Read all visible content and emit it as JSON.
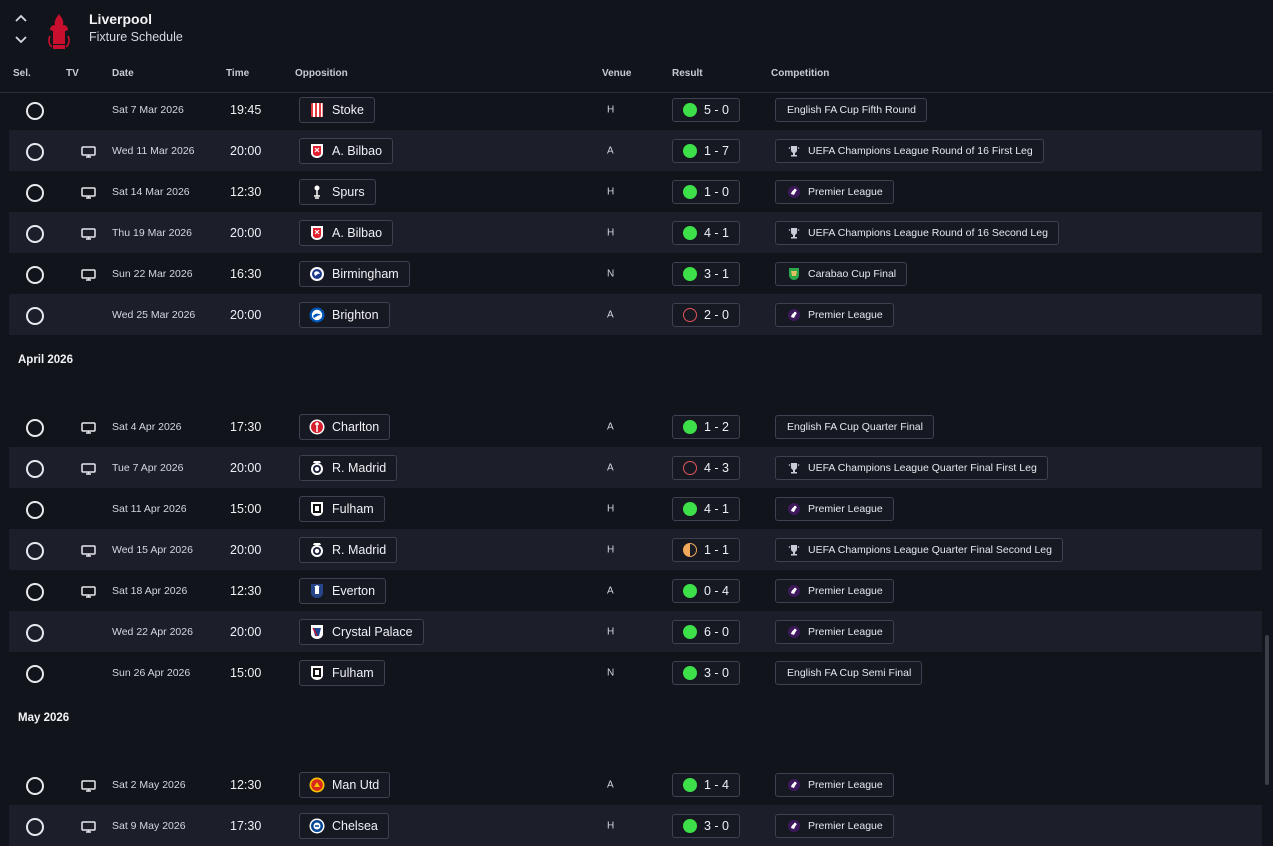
{
  "header": {
    "club_name": "Liverpool",
    "page_title": "Fixture Schedule"
  },
  "columns": {
    "sel": "Sel.",
    "tv": "TV",
    "date": "Date",
    "time": "Time",
    "opposition": "Opposition",
    "venue": "Venue",
    "result": "Result",
    "competition": "Competition"
  },
  "colors": {
    "win": "#3ee04a",
    "loss": "#e2535a",
    "draw": "#f0a85a"
  },
  "sections": [
    {
      "month": "",
      "fixtures": [
        {
          "tv": false,
          "date": "Sat 7 Mar 2026",
          "time": "19:45",
          "opponent": "Stoke",
          "crest": "stoke-crest",
          "venue": "H",
          "outcome": "win",
          "score": "5 - 0",
          "competition": "English FA Cup Fifth Round",
          "comp_icon": ""
        },
        {
          "tv": true,
          "date": "Wed 11 Mar 2026",
          "time": "20:00",
          "opponent": "A. Bilbao",
          "crest": "athletic-bilbao-crest",
          "venue": "A",
          "outcome": "win",
          "score": "1 - 7",
          "competition": "UEFA Champions League Round of 16  First Leg",
          "comp_icon": "champions-league-icon"
        },
        {
          "tv": true,
          "date": "Sat 14 Mar 2026",
          "time": "12:30",
          "opponent": "Spurs",
          "crest": "spurs-crest",
          "venue": "H",
          "outcome": "win",
          "score": "1 - 0",
          "competition": "Premier League",
          "comp_icon": "premier-league-icon"
        },
        {
          "tv": true,
          "date": "Thu 19 Mar 2026",
          "time": "20:00",
          "opponent": "A. Bilbao",
          "crest": "athletic-bilbao-crest",
          "venue": "H",
          "outcome": "win",
          "score": "4 - 1",
          "competition": "UEFA Champions League Round of 16  Second Leg",
          "comp_icon": "champions-league-icon"
        },
        {
          "tv": true,
          "date": "Sun 22 Mar 2026",
          "time": "16:30",
          "opponent": "Birmingham",
          "crest": "birmingham-crest",
          "venue": "N",
          "outcome": "win",
          "score": "3 - 1",
          "competition": "Carabao Cup Final",
          "comp_icon": "carabao-cup-icon"
        },
        {
          "tv": false,
          "date": "Wed 25 Mar 2026",
          "time": "20:00",
          "opponent": "Brighton",
          "crest": "brighton-crest",
          "venue": "A",
          "outcome": "loss",
          "score": "2 - 0",
          "competition": "Premier League",
          "comp_icon": "premier-league-icon"
        }
      ]
    },
    {
      "month": "April 2026",
      "fixtures": [
        {
          "tv": true,
          "date": "Sat 4 Apr 2026",
          "time": "17:30",
          "opponent": "Charlton",
          "crest": "charlton-crest",
          "venue": "A",
          "outcome": "win",
          "score": "1 - 2",
          "competition": "English FA Cup Quarter Final",
          "comp_icon": ""
        },
        {
          "tv": true,
          "date": "Tue 7 Apr 2026",
          "time": "20:00",
          "opponent": "R. Madrid",
          "crest": "real-madrid-crest",
          "venue": "A",
          "outcome": "loss",
          "score": "4 - 3",
          "competition": "UEFA Champions League Quarter Final First Leg",
          "comp_icon": "champions-league-icon"
        },
        {
          "tv": false,
          "date": "Sat 11 Apr 2026",
          "time": "15:00",
          "opponent": "Fulham",
          "crest": "fulham-crest",
          "venue": "H",
          "outcome": "win",
          "score": "4 - 1",
          "competition": "Premier League",
          "comp_icon": "premier-league-icon"
        },
        {
          "tv": true,
          "date": "Wed 15 Apr 2026",
          "time": "20:00",
          "opponent": "R. Madrid",
          "crest": "real-madrid-crest",
          "venue": "H",
          "outcome": "draw",
          "score": "1 - 1",
          "competition": "UEFA Champions League Quarter Final Second Leg",
          "comp_icon": "champions-league-icon"
        },
        {
          "tv": true,
          "date": "Sat 18 Apr 2026",
          "time": "12:30",
          "opponent": "Everton",
          "crest": "everton-crest",
          "venue": "A",
          "outcome": "win",
          "score": "0 - 4",
          "competition": "Premier League",
          "comp_icon": "premier-league-icon"
        },
        {
          "tv": false,
          "date": "Wed 22 Apr 2026",
          "time": "20:00",
          "opponent": "Crystal Palace",
          "crest": "crystal-palace-crest",
          "venue": "H",
          "outcome": "win",
          "score": "6 - 0",
          "competition": "Premier League",
          "comp_icon": "premier-league-icon"
        },
        {
          "tv": false,
          "date": "Sun 26 Apr 2026",
          "time": "15:00",
          "opponent": "Fulham",
          "crest": "fulham-crest",
          "venue": "N",
          "outcome": "win",
          "score": "3 - 0",
          "competition": "English FA Cup Semi Final",
          "comp_icon": ""
        }
      ]
    },
    {
      "month": "May 2026",
      "fixtures": [
        {
          "tv": true,
          "date": "Sat 2 May 2026",
          "time": "12:30",
          "opponent": "Man Utd",
          "crest": "man-utd-crest",
          "venue": "A",
          "outcome": "win",
          "score": "1 - 4",
          "competition": "Premier League",
          "comp_icon": "premier-league-icon"
        },
        {
          "tv": true,
          "date": "Sat 9 May 2026",
          "time": "17:30",
          "opponent": "Chelsea",
          "crest": "chelsea-crest",
          "venue": "H",
          "outcome": "win",
          "score": "3 - 0",
          "competition": "Premier League",
          "comp_icon": "premier-league-icon"
        }
      ]
    }
  ]
}
